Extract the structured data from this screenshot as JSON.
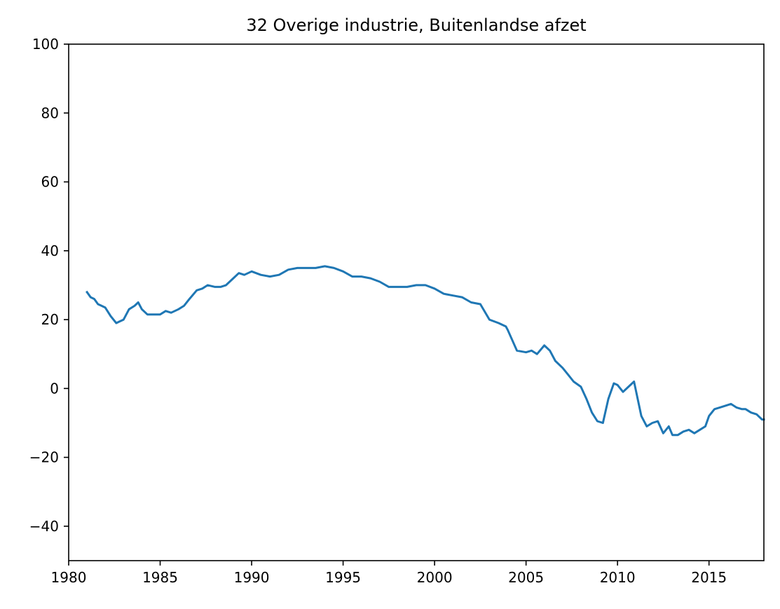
{
  "chart_data": {
    "type": "line",
    "title": "32 Overige industrie, Buitenlandse afzet",
    "xlabel": "",
    "ylabel": "",
    "xlim": [
      1980,
      2018
    ],
    "ylim": [
      -50,
      100
    ],
    "xticks": [
      {
        "value": 1980,
        "label": "1980"
      },
      {
        "value": 1985,
        "label": "1985"
      },
      {
        "value": 1990,
        "label": "1990"
      },
      {
        "value": 1995,
        "label": "1995"
      },
      {
        "value": 2000,
        "label": "2000"
      },
      {
        "value": 2005,
        "label": "2005"
      },
      {
        "value": 2010,
        "label": "2010"
      },
      {
        "value": 2015,
        "label": "2015"
      }
    ],
    "yticks": [
      {
        "value": 100,
        "label": "100"
      },
      {
        "value": 80,
        "label": "80"
      },
      {
        "value": 60,
        "label": "60"
      },
      {
        "value": 40,
        "label": "40"
      },
      {
        "value": 20,
        "label": "20"
      },
      {
        "value": 0,
        "label": "0"
      },
      {
        "value": -20,
        "label": "−20"
      },
      {
        "value": -40,
        "label": "−40"
      }
    ],
    "grid": false,
    "series": [
      {
        "color": "#1f77b4",
        "x": [
          1981.0,
          1981.2,
          1981.4,
          1981.6,
          1981.8,
          1982.0,
          1982.3,
          1982.6,
          1982.8,
          1983.0,
          1983.3,
          1983.6,
          1983.8,
          1984.0,
          1984.3,
          1984.6,
          1985.0,
          1985.3,
          1985.6,
          1986.0,
          1986.3,
          1986.6,
          1987.0,
          1987.3,
          1987.6,
          1988.0,
          1988.3,
          1988.6,
          1989.0,
          1989.3,
          1989.6,
          1990.0,
          1990.5,
          1991.0,
          1991.5,
          1992.0,
          1992.5,
          1993.0,
          1993.5,
          1994.0,
          1994.5,
          1995.0,
          1995.5,
          1996.0,
          1996.5,
          1997.0,
          1997.5,
          1998.0,
          1998.5,
          1999.0,
          1999.5,
          2000.0,
          2000.5,
          2001.0,
          2001.5,
          2002.0,
          2002.5,
          2003.0,
          2003.5,
          2003.9,
          2004.0,
          2004.5,
          2005.0,
          2005.3,
          2005.6,
          2006.0,
          2006.3,
          2006.6,
          2007.0,
          2007.3,
          2007.6,
          2008.0,
          2008.3,
          2008.6,
          2008.9,
          2009.2,
          2009.5,
          2009.8,
          2010.0,
          2010.3,
          2010.6,
          2010.9,
          2011.1,
          2011.3,
          2011.6,
          2011.9,
          2012.2,
          2012.5,
          2012.8,
          2013.0,
          2013.3,
          2013.6,
          2013.9,
          2014.2,
          2014.5,
          2014.8,
          2015.0,
          2015.3,
          2015.6,
          2015.9,
          2016.2,
          2016.5,
          2016.8,
          2017.0,
          2017.3,
          2017.6,
          2017.9,
          2018.0
        ],
        "y": [
          28.0,
          26.5,
          26.0,
          24.5,
          24.0,
          23.5,
          21.0,
          19.0,
          19.5,
          20.0,
          23.0,
          24.0,
          25.0,
          23.0,
          21.5,
          21.5,
          21.5,
          22.5,
          22.0,
          23.0,
          24.0,
          26.0,
          28.5,
          29.0,
          30.0,
          29.5,
          29.5,
          30.0,
          32.0,
          33.5,
          33.0,
          34.0,
          33.0,
          32.5,
          33.0,
          34.5,
          35.0,
          35.0,
          35.0,
          35.5,
          35.0,
          34.0,
          32.5,
          32.5,
          32.0,
          31.0,
          29.5,
          29.5,
          29.5,
          30.0,
          30.0,
          29.0,
          27.5,
          27.0,
          26.5,
          25.0,
          24.5,
          20.0,
          19.0,
          18.0,
          17.0,
          11.0,
          10.5,
          11.0,
          10.0,
          12.5,
          11.0,
          8.0,
          6.0,
          4.0,
          2.0,
          0.5,
          -3.0,
          -7.0,
          -9.5,
          -10.0,
          -3.0,
          1.5,
          1.0,
          -1.0,
          0.5,
          2.0,
          -3.0,
          -8.0,
          -11.0,
          -10.0,
          -9.5,
          -13.0,
          -11.0,
          -13.5,
          -13.5,
          -12.5,
          -12.0,
          -13.0,
          -12.0,
          -11.0,
          -8.0,
          -6.0,
          -5.5,
          -5.0,
          -4.5,
          -5.5,
          -6.0,
          -6.0,
          -7.0,
          -7.5,
          -9.0,
          -9.0
        ]
      }
    ]
  }
}
